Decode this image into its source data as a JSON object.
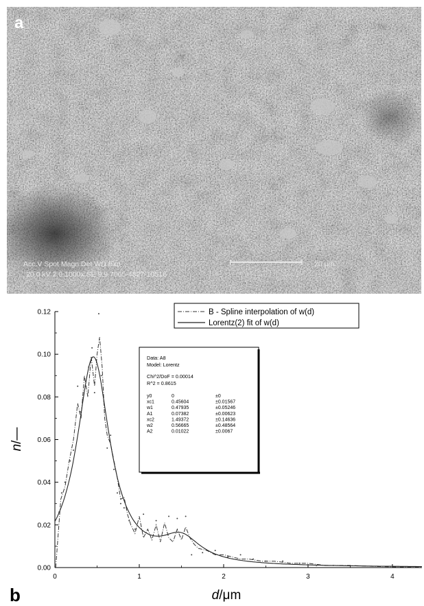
{
  "panels": {
    "a_label": "a",
    "b_label": "b"
  },
  "sem": {
    "info_header": "Acc.V  Spot Magn   Det  WD  Exp",
    "info_values": "20.0 kV 2.0  1000x   SE   9.9  7065-4827-10516",
    "scale_text": "20 μm"
  },
  "chart_data": {
    "type": "line",
    "xlabel_italic": "d",
    "xlabel_unit": "/μm",
    "ylabel_italic": "n",
    "ylabel_unit": "/—",
    "xlim": [
      0,
      4.35
    ],
    "ylim": [
      0,
      0.12
    ],
    "xticks": [
      0,
      1,
      2,
      3,
      4
    ],
    "yticks": [
      0.0,
      0.02,
      0.04,
      0.06,
      0.08,
      0.1,
      0.12
    ],
    "ytick_labels": [
      "0.00",
      "0.02",
      "0.04",
      "0.06",
      "0.08",
      "0.10",
      "0.12"
    ],
    "legend_position": "top-right",
    "series": [
      {
        "name": "B - Spline interpolation of w(d)",
        "style": "dash-dot",
        "x": [
          0.01,
          0.07,
          0.12,
          0.17,
          0.22,
          0.27,
          0.31,
          0.35,
          0.39,
          0.43,
          0.47,
          0.5,
          0.53,
          0.56,
          0.59,
          0.62,
          0.66,
          0.7,
          0.74,
          0.78,
          0.82,
          0.86,
          0.9,
          0.95,
          1.0,
          1.05,
          1.1,
          1.15,
          1.2,
          1.25,
          1.3,
          1.35,
          1.4,
          1.45,
          1.5,
          1.55,
          1.6,
          1.65,
          1.7,
          1.8,
          1.9,
          2.0,
          2.1,
          2.2,
          2.3,
          2.45,
          2.6,
          2.8,
          3.0,
          3.2,
          3.5,
          3.8,
          4.1,
          4.35
        ],
        "y": [
          0.0,
          0.032,
          0.038,
          0.05,
          0.06,
          0.077,
          0.07,
          0.09,
          0.08,
          0.099,
          0.085,
          0.1,
          0.108,
          0.094,
          0.07,
          0.062,
          0.058,
          0.05,
          0.042,
          0.032,
          0.033,
          0.025,
          0.02,
          0.016,
          0.024,
          0.014,
          0.018,
          0.013,
          0.02,
          0.012,
          0.021,
          0.014,
          0.012,
          0.018,
          0.013,
          0.019,
          0.014,
          0.011,
          0.009,
          0.008,
          0.006,
          0.006,
          0.005,
          0.004,
          0.004,
          0.003,
          0.003,
          0.002,
          0.002,
          0.001,
          0.001,
          0.0005,
          0.0003,
          0.0002
        ]
      },
      {
        "name": "Lorentz(2) fit of w(d)",
        "style": "solid",
        "model": "lorentz2",
        "params": {
          "y0": 0,
          "xc1": 0.45604,
          "w1": 0.47935,
          "A1": 0.07382,
          "xc2": 1.49372,
          "w2": 0.56665,
          "A2": 0.01022
        }
      }
    ],
    "scatter_points": {
      "x": [
        0.05,
        0.08,
        0.12,
        0.18,
        0.22,
        0.27,
        0.3,
        0.33,
        0.36,
        0.4,
        0.44,
        0.47,
        0.52,
        0.55,
        0.58,
        0.62,
        0.66,
        0.7,
        0.74,
        0.78,
        0.82,
        0.88,
        0.95,
        1.05,
        1.2,
        1.35,
        1.45,
        1.55,
        1.62,
        1.75,
        1.9,
        2.05,
        2.2,
        2.35,
        2.5,
        2.7,
        2.9,
        3.1,
        3.3
      ],
      "y": [
        0.026,
        0.035,
        0.04,
        0.05,
        0.055,
        0.085,
        0.073,
        0.079,
        0.085,
        0.094,
        0.103,
        0.082,
        0.119,
        0.09,
        0.078,
        0.056,
        0.062,
        0.046,
        0.035,
        0.03,
        0.028,
        0.022,
        0.018,
        0.025,
        0.022,
        0.024,
        0.023,
        0.024,
        0.006,
        0.007,
        0.008,
        0.005,
        0.006,
        0.004,
        0.003,
        0.003,
        0.002,
        0.001,
        0.001
      ]
    },
    "fit_report": {
      "lines": [
        "Data: A8",
        "Model: Lorentz",
        "Chi^2/DoF      = 0.00014",
        "R^2    = 0.8615"
      ],
      "params": [
        [
          "y0",
          "0",
          "±0"
        ],
        [
          "xc1",
          "0.45604",
          "±0.01567"
        ],
        [
          "w1",
          "0.47935",
          "±0.05246"
        ],
        [
          "A1",
          "0.07382",
          "±0.00623"
        ],
        [
          "xc2",
          "1.49372",
          "±0.14636"
        ],
        [
          "w2",
          "0.56665",
          "±0.48564"
        ],
        [
          "A2",
          "0.01022",
          "±0.0067"
        ]
      ]
    }
  }
}
